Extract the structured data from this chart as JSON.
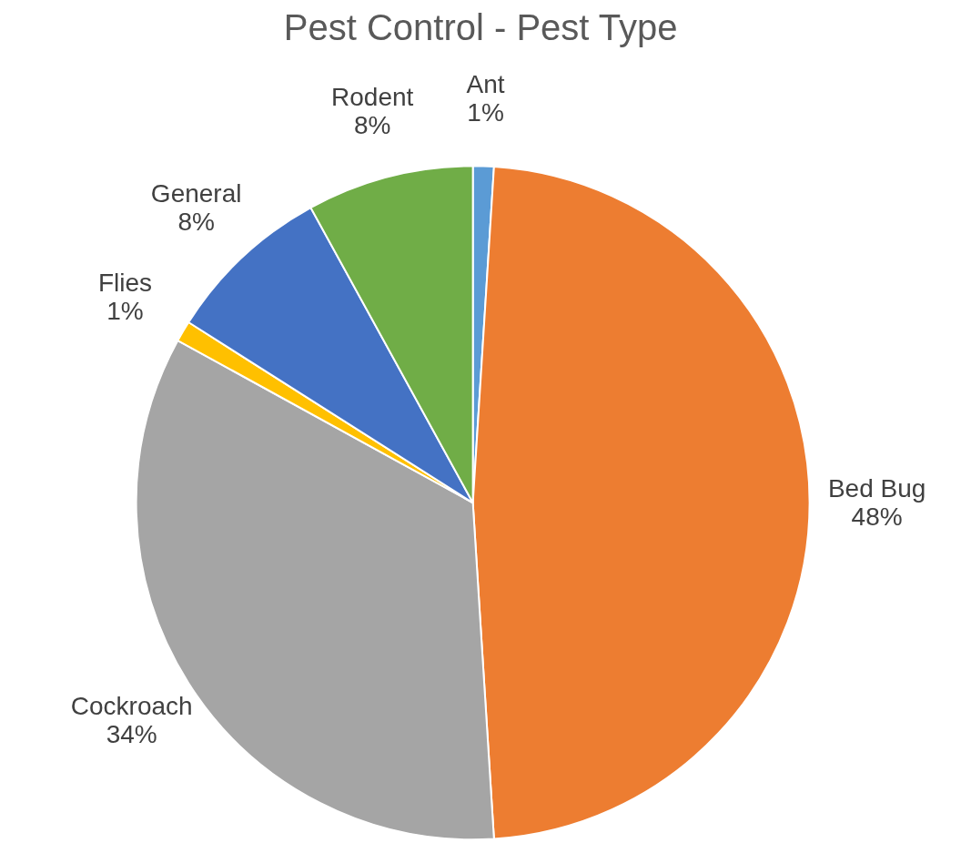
{
  "chart_data": {
    "type": "pie",
    "title": "Pest Control - Pest Type",
    "categories": [
      "Ant",
      "Bed Bug",
      "Cockroach",
      "Flies",
      "General",
      "Rodent"
    ],
    "values": [
      1,
      48,
      34,
      1,
      8,
      8
    ],
    "value_labels": [
      "1%",
      "48%",
      "34%",
      "1%",
      "8%",
      "8%"
    ],
    "colors": [
      "#5b9bd5",
      "#ed7d31",
      "#a5a5a5",
      "#ffc000",
      "#4472c4",
      "#70ad47"
    ],
    "legend": false
  }
}
